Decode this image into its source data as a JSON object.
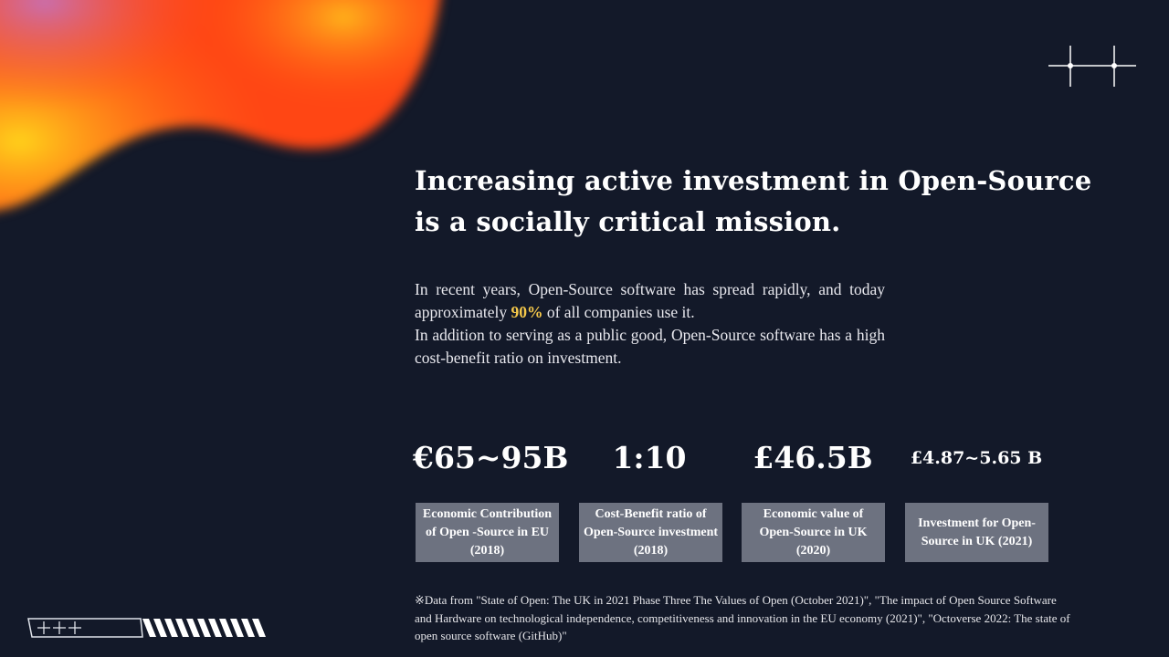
{
  "headline": {
    "line1": "Increasing active investment in Open-Source",
    "line2": "is a socially critical mission."
  },
  "body": {
    "part1": "In recent years, Open-Source software has spread rapidly, and today approximately ",
    "highlight": "90%",
    "part2": " of all companies use it.",
    "part3": "In addition to serving as a public good, Open-Source software has a high cost-benefit ratio on investment."
  },
  "colors": {
    "background": "#131929",
    "highlight": "#f5c84a",
    "card": "#6d7280"
  },
  "stats": [
    {
      "value": "€65~95B",
      "label": "Economic Contribution of Open -Source in EU (2018)"
    },
    {
      "value": "1:10",
      "label": "Cost-Benefit ratio of Open-Source investment (2018)"
    },
    {
      "value": "£46.5B",
      "label": "Economic value of Open-Source in UK (2020)"
    },
    {
      "value": "£4.87~5.65 B",
      "label": "Investment for Open-Source in UK (2021)"
    }
  ],
  "footnote": "※Data from \"State of Open: The UK in 2021 Phase Three The Values of Open (October 2021)\", \"The impact of Open Source Software and Hardware on technological independence, competitiveness and innovation in the EU economy (2021)\", \"Octoverse 2022: The state of open source software (GitHub)\"",
  "decor": {
    "top_right": "crosshair-lines-icon",
    "bottom_left": "striped-bar-icon",
    "top_left": "gradient-blob"
  }
}
